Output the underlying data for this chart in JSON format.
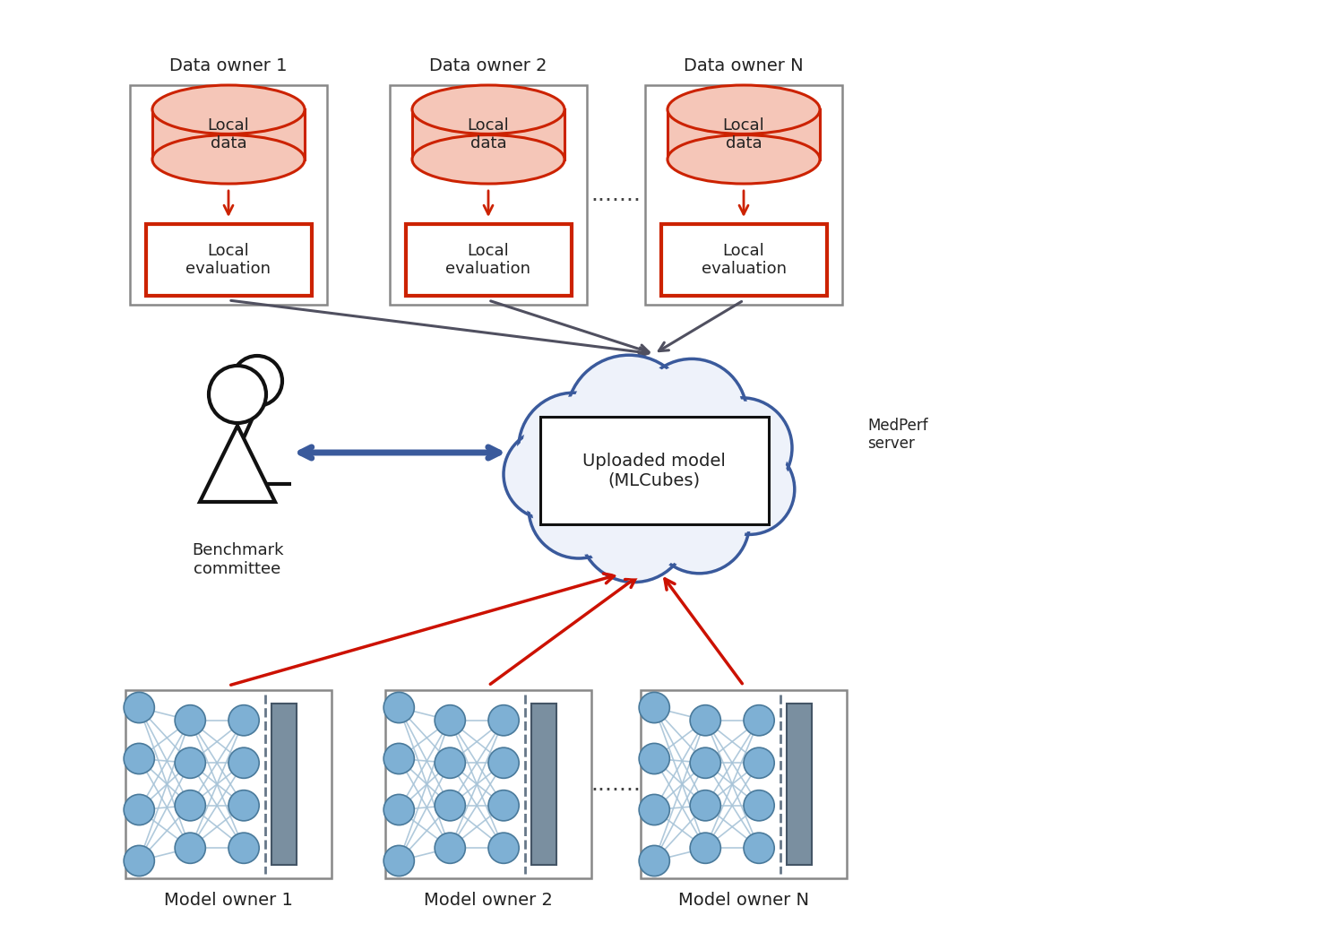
{
  "bg_color": "#ffffff",
  "data_owners": [
    "Data owner 1",
    "Data owner 2",
    "Data owner N"
  ],
  "model_owners": [
    "Model owner 1",
    "Model owner 2",
    "Model owner N"
  ],
  "local_data_label": "Local\ndata",
  "local_eval_label": "Local\nevaluation",
  "cloud_label": "Uploaded model\n(MLCubes)",
  "benchmark_label": "Benchmark\ncommittee",
  "medperf_label": "MedPerf\nserver",
  "dots": ".......",
  "db_fill": "#f5c6b8",
  "db_edge": "#cc2200",
  "eval_fill": "#ffffff",
  "eval_edge": "#cc2200",
  "owner_box_edge": "#888888",
  "cloud_edge": "#3a5a9c",
  "model_box_fill": "#ffffff",
  "model_box_edge": "#111111",
  "arrow_gray": "#505060",
  "arrow_red": "#cc1100",
  "arrow_blue": "#3a5a9c",
  "node_blue": "#7eb0d4",
  "layer_fill": "#7a8fa0",
  "text_color": "#222222"
}
